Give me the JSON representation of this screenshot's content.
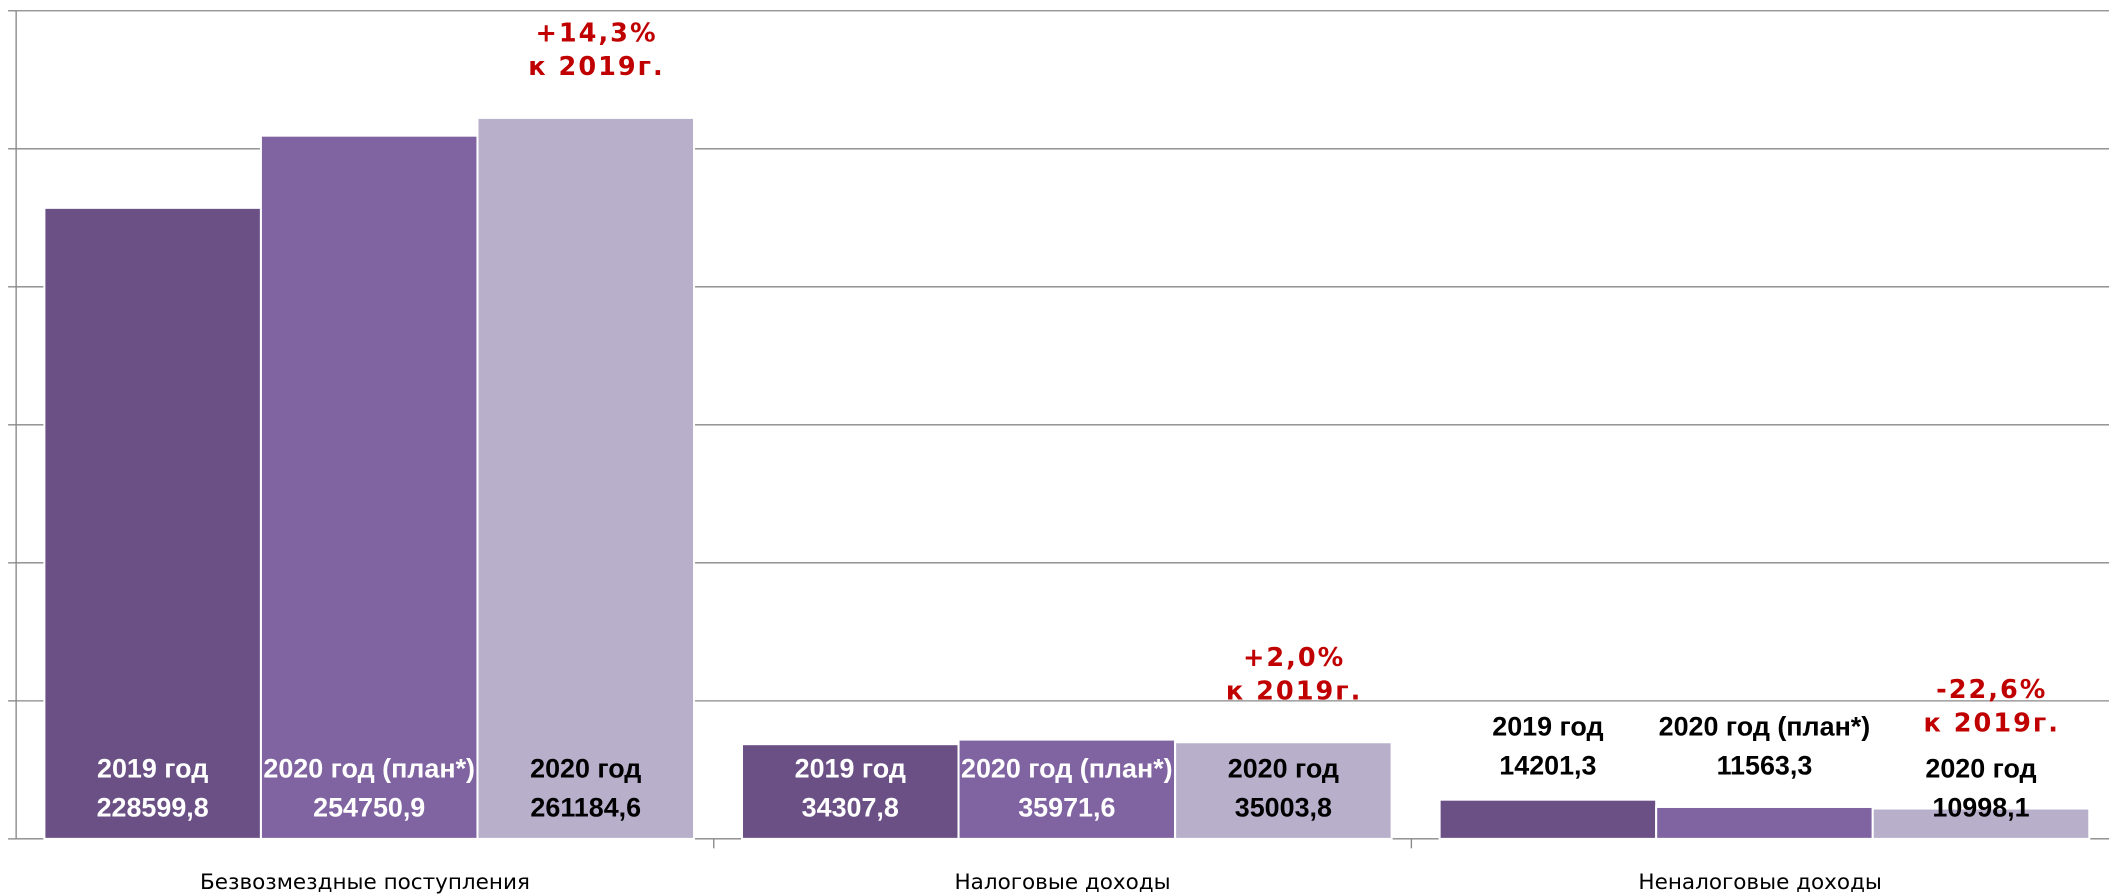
{
  "chart_data": {
    "type": "bar",
    "categories": [
      "Безвозмездные поступления",
      "Налоговые доходы",
      "Неналоговые доходы"
    ],
    "series": [
      {
        "name": "2019 год",
        "color": "#6a5085",
        "values": [
          228599.8,
          34307.8,
          14201.3
        ],
        "value_labels": [
          "228599,8",
          "34307,8",
          "14201,3"
        ]
      },
      {
        "name": "2020 год (план*)",
        "color": "#8064a2",
        "values": [
          254750.9,
          35971.6,
          11563.3
        ],
        "value_labels": [
          "254750,9",
          "35971,6",
          "11563,3"
        ]
      },
      {
        "name": "2020 год",
        "color": "#b8afcb",
        "values": [
          261184.6,
          35003.8,
          10998.1
        ],
        "value_labels": [
          "261184,6",
          "35003,8",
          "10998,1"
        ]
      }
    ],
    "annotations": [
      {
        "category": 0,
        "lines": [
          "+14,3%",
          "к 2019г."
        ]
      },
      {
        "category": 1,
        "lines": [
          "+2,0%",
          "к 2019г."
        ]
      },
      {
        "category": 2,
        "lines": [
          "-22,6%",
          "к 2019г."
        ]
      }
    ],
    "annotation_color": "#c00000",
    "ylim": [
      0,
      300000
    ],
    "yticks": [
      0,
      50000,
      100000,
      150000,
      200000,
      250000,
      300000
    ],
    "grid": true
  }
}
